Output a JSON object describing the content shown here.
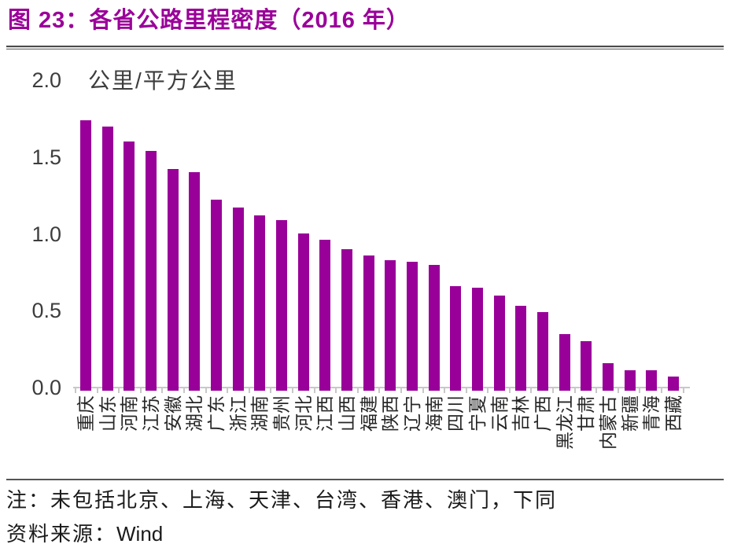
{
  "header": {
    "title": "图 23：各省公路里程密度（2016 年）"
  },
  "chart_data": {
    "type": "bar",
    "title": "图 23：各省公路里程密度（2016 年）",
    "unit_label": "公里/平方公里",
    "categories": [
      "重庆",
      "山东",
      "河南",
      "江苏",
      "安徽",
      "湖北",
      "广东",
      "浙江",
      "湖南",
      "贵州",
      "河北",
      "江西",
      "山西",
      "福建",
      "陕西",
      "辽宁",
      "海南",
      "四川",
      "宁夏",
      "云南",
      "吉林",
      "广西",
      "黑龙江",
      "甘肃",
      "内蒙古",
      "新疆",
      "青海",
      "西藏"
    ],
    "values": [
      1.74,
      1.7,
      1.6,
      1.54,
      1.42,
      1.4,
      1.22,
      1.17,
      1.12,
      1.09,
      1.0,
      0.96,
      0.9,
      0.86,
      0.83,
      0.82,
      0.8,
      0.66,
      0.65,
      0.6,
      0.53,
      0.49,
      0.35,
      0.3,
      0.16,
      0.11,
      0.11,
      0.07
    ],
    "ylabel": "公里/平方公里",
    "xlabel": "",
    "ylim": [
      0.0,
      2.0
    ],
    "yticks": [
      "2.0",
      "1.5",
      "1.0",
      "0.5",
      "0.0"
    ],
    "grid": false,
    "legend": false,
    "bar_color": "#990099",
    "axis_color": "#c8c8c8"
  },
  "footer": {
    "note": "注：未包括北京、上海、天津、台湾、香港、澳门，下同",
    "source_label": "资料来源：",
    "source_value": "Wind"
  },
  "colors": {
    "accent": "#990099",
    "title_text": "#9a0099",
    "axis_text": "#3d3d3d",
    "label_text": "#262626",
    "rule": "#4a4a4a"
  }
}
